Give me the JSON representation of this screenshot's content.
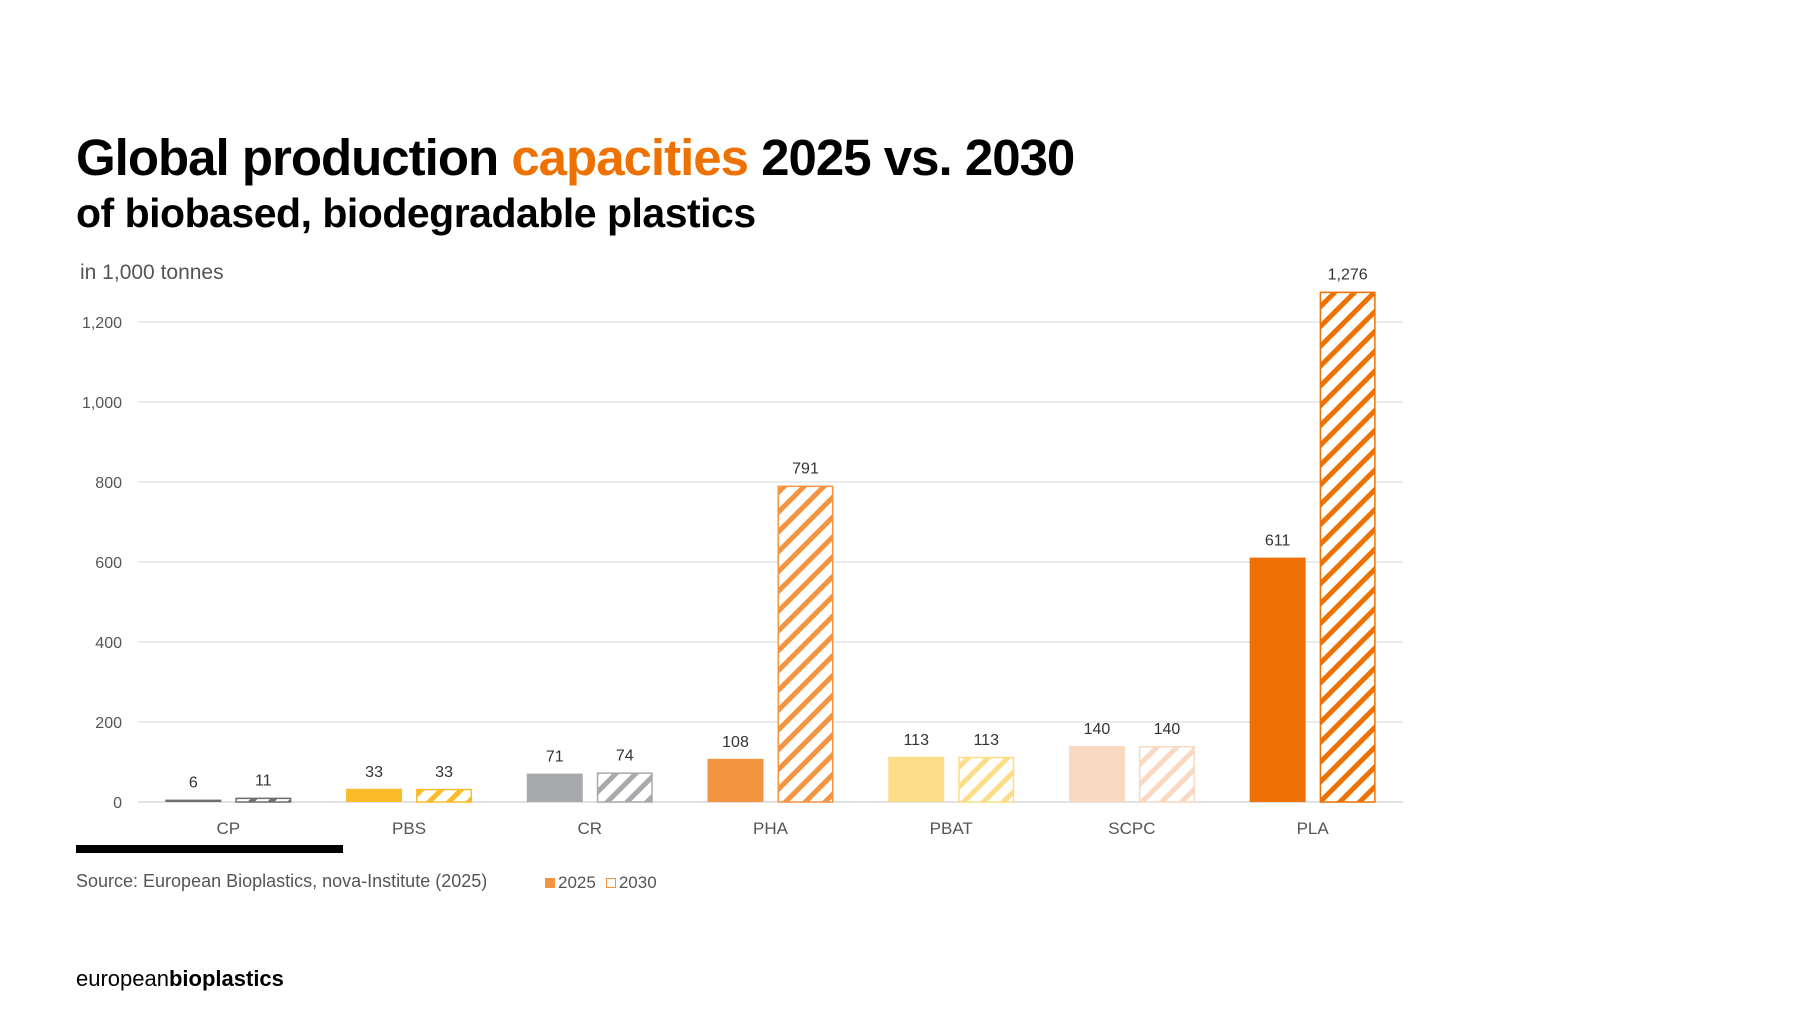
{
  "header": {
    "title_part1": "Global production ",
    "title_accent": "capacities",
    "title_part2": " 2025 vs. 2030",
    "subtitle": "of biobased, biodegradable plastics"
  },
  "colors": {
    "accent": "#EE7203"
  },
  "chart_data": {
    "type": "bar",
    "title": "Global production capacities 2025 vs. 2030 of biobased, biodegradable plastics",
    "ylabel": "in 1,000 tonnes",
    "xlabel": "",
    "ylim": [
      0,
      1300
    ],
    "yticks": [
      0,
      200,
      400,
      600,
      800,
      1000,
      1200
    ],
    "ytick_labels": [
      "0",
      "200",
      "400",
      "600",
      "800",
      "1,000",
      "1,200"
    ],
    "grid": true,
    "legend_position": "bottom-left",
    "categories": [
      "CP",
      "PBS",
      "CR",
      "PHA",
      "PBAT",
      "SCPC",
      "PLA"
    ],
    "category_colors": [
      "#6F6F6F",
      "#FBBC2A",
      "#A7A9AC",
      "#F39440",
      "#FEDD8A",
      "#F9D9C1",
      "#EE7203"
    ],
    "series": [
      {
        "name": "2025",
        "style": "solid",
        "values": [
          6,
          33,
          71,
          108,
          113,
          140,
          611
        ],
        "labels": [
          "6",
          "33",
          "71",
          "108",
          "113",
          "140",
          "611"
        ]
      },
      {
        "name": "2030",
        "style": "hatched",
        "values": [
          11,
          33,
          74,
          791,
          113,
          140,
          1276
        ],
        "labels": [
          "11",
          "33",
          "74",
          "791",
          "113",
          "140",
          "1,276"
        ]
      }
    ]
  },
  "footer": {
    "source": "Source: European Bioplastics, nova-Institute (2025)",
    "legend": [
      {
        "label": "2025",
        "color": "#F39440",
        "style": "solid"
      },
      {
        "label": "2030",
        "color": "#F39440",
        "style": "outline"
      }
    ],
    "logo_regular": "european",
    "logo_bold": "bioplastics"
  }
}
